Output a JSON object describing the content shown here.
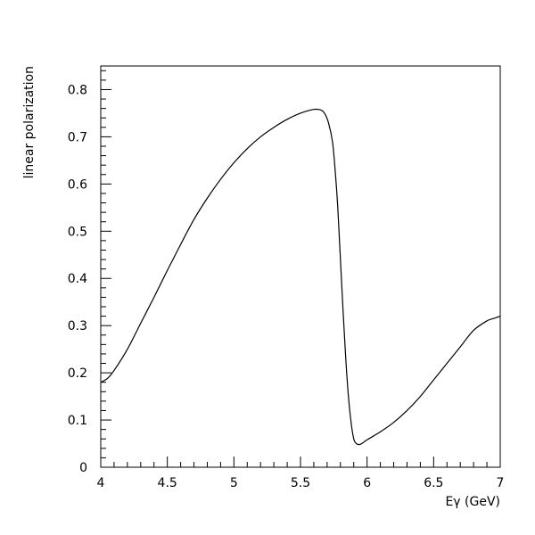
{
  "chart_data": {
    "type": "line",
    "xlabel": "Eγ (GeV)",
    "ylabel": "linear polarization",
    "xlim": [
      4,
      7
    ],
    "ylim": [
      0,
      0.85
    ],
    "x_ticks": [
      {
        "value": 4,
        "label": "4"
      },
      {
        "value": 4.5,
        "label": "4.5"
      },
      {
        "value": 5,
        "label": "5"
      },
      {
        "value": 5.5,
        "label": "5.5"
      },
      {
        "value": 6,
        "label": "6"
      },
      {
        "value": 6.5,
        "label": "6.5"
      },
      {
        "value": 7,
        "label": "7"
      }
    ],
    "y_ticks": [
      {
        "value": 0,
        "label": "0"
      },
      {
        "value": 0.1,
        "label": "0.1"
      },
      {
        "value": 0.2,
        "label": "0.2"
      },
      {
        "value": 0.3,
        "label": "0.3"
      },
      {
        "value": 0.4,
        "label": "0.4"
      },
      {
        "value": 0.5,
        "label": "0.5"
      },
      {
        "value": 0.6,
        "label": "0.6"
      },
      {
        "value": 0.7,
        "label": "0.7"
      },
      {
        "value": 0.8,
        "label": "0.8"
      }
    ],
    "grid": false,
    "series": [
      {
        "x": [
          4.0,
          4.05,
          4.1,
          4.2,
          4.3,
          4.4,
          4.5,
          4.6,
          4.7,
          4.8,
          4.9,
          5.0,
          5.1,
          5.2,
          5.3,
          5.4,
          5.5,
          5.6,
          5.65,
          5.68,
          5.71,
          5.74,
          5.76,
          5.78,
          5.8,
          5.82,
          5.84,
          5.86,
          5.88,
          5.9,
          5.92,
          5.94,
          5.96,
          6.0,
          6.1,
          6.2,
          6.3,
          6.4,
          6.5,
          6.6,
          6.7,
          6.8,
          6.9,
          6.95,
          7.0
        ],
        "y": [
          0.18,
          0.188,
          0.205,
          0.25,
          0.305,
          0.36,
          0.417,
          0.472,
          0.525,
          0.57,
          0.61,
          0.645,
          0.675,
          0.7,
          0.72,
          0.737,
          0.75,
          0.758,
          0.757,
          0.75,
          0.73,
          0.69,
          0.63,
          0.55,
          0.44,
          0.33,
          0.23,
          0.15,
          0.095,
          0.06,
          0.05,
          0.048,
          0.05,
          0.058,
          0.075,
          0.095,
          0.12,
          0.15,
          0.185,
          0.22,
          0.255,
          0.29,
          0.31,
          0.315,
          0.32
        ]
      }
    ]
  }
}
